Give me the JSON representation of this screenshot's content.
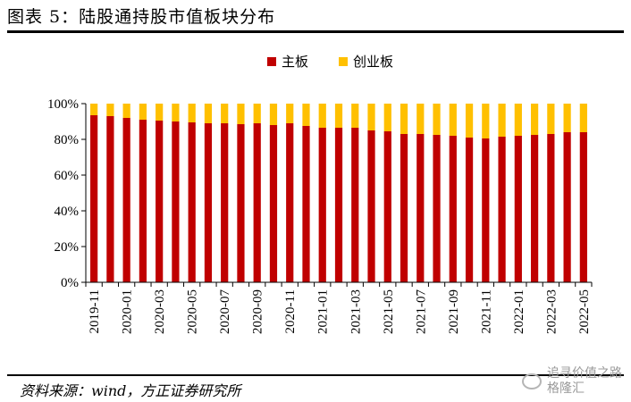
{
  "header": {
    "title": "图表 5：陆股通持股市值板块分布"
  },
  "footer": {
    "source": "资料来源：wind，方正证券研究所"
  },
  "watermark": {
    "line1": "追寻价值之路",
    "line2": "格隆汇"
  },
  "chart_data": {
    "type": "bar",
    "stacked": true,
    "title": "",
    "xlabel": "",
    "ylabel": "",
    "ylim": [
      0,
      100
    ],
    "yticks": [
      "0%",
      "20%",
      "40%",
      "60%",
      "80%",
      "100%"
    ],
    "legend_position": "top-center",
    "categories": [
      "2019-11",
      "2019-12",
      "2020-01",
      "2020-02",
      "2020-03",
      "2020-04",
      "2020-05",
      "2020-06",
      "2020-07",
      "2020-08",
      "2020-09",
      "2020-10",
      "2020-11",
      "2020-12",
      "2021-01",
      "2021-02",
      "2021-03",
      "2021-04",
      "2021-05",
      "2021-06",
      "2021-07",
      "2021-08",
      "2021-09",
      "2021-10",
      "2021-11",
      "2021-12",
      "2022-01",
      "2022-02",
      "2022-03",
      "2022-04",
      "2022-05"
    ],
    "xtick_labels": [
      "2019-11",
      "2020-01",
      "2020-03",
      "2020-05",
      "2020-07",
      "2020-09",
      "2020-11",
      "2021-01",
      "2021-03",
      "2021-05",
      "2021-07",
      "2021-09",
      "2021-11",
      "2022-01",
      "2022-03",
      "2022-05"
    ],
    "series": [
      {
        "name": "主板",
        "color": "#c00000",
        "values": [
          93.5,
          93,
          92,
          91,
          90.5,
          90,
          89.5,
          89,
          89,
          88.5,
          89,
          88,
          89,
          87.5,
          86.5,
          86.5,
          86.5,
          85,
          84.5,
          83,
          83,
          82.5,
          82,
          81,
          80.5,
          81.5,
          82,
          82.5,
          83,
          84,
          84
        ]
      },
      {
        "name": "创业板",
        "color": "#ffc000",
        "values": [
          6.5,
          7,
          8,
          9,
          9.5,
          10,
          10.5,
          11,
          11,
          11.5,
          11,
          12,
          11,
          12.5,
          13.5,
          13.5,
          13.5,
          15,
          15.5,
          17,
          17,
          17.5,
          18,
          19,
          19.5,
          18.5,
          18,
          17.5,
          17,
          16,
          16
        ]
      }
    ]
  }
}
